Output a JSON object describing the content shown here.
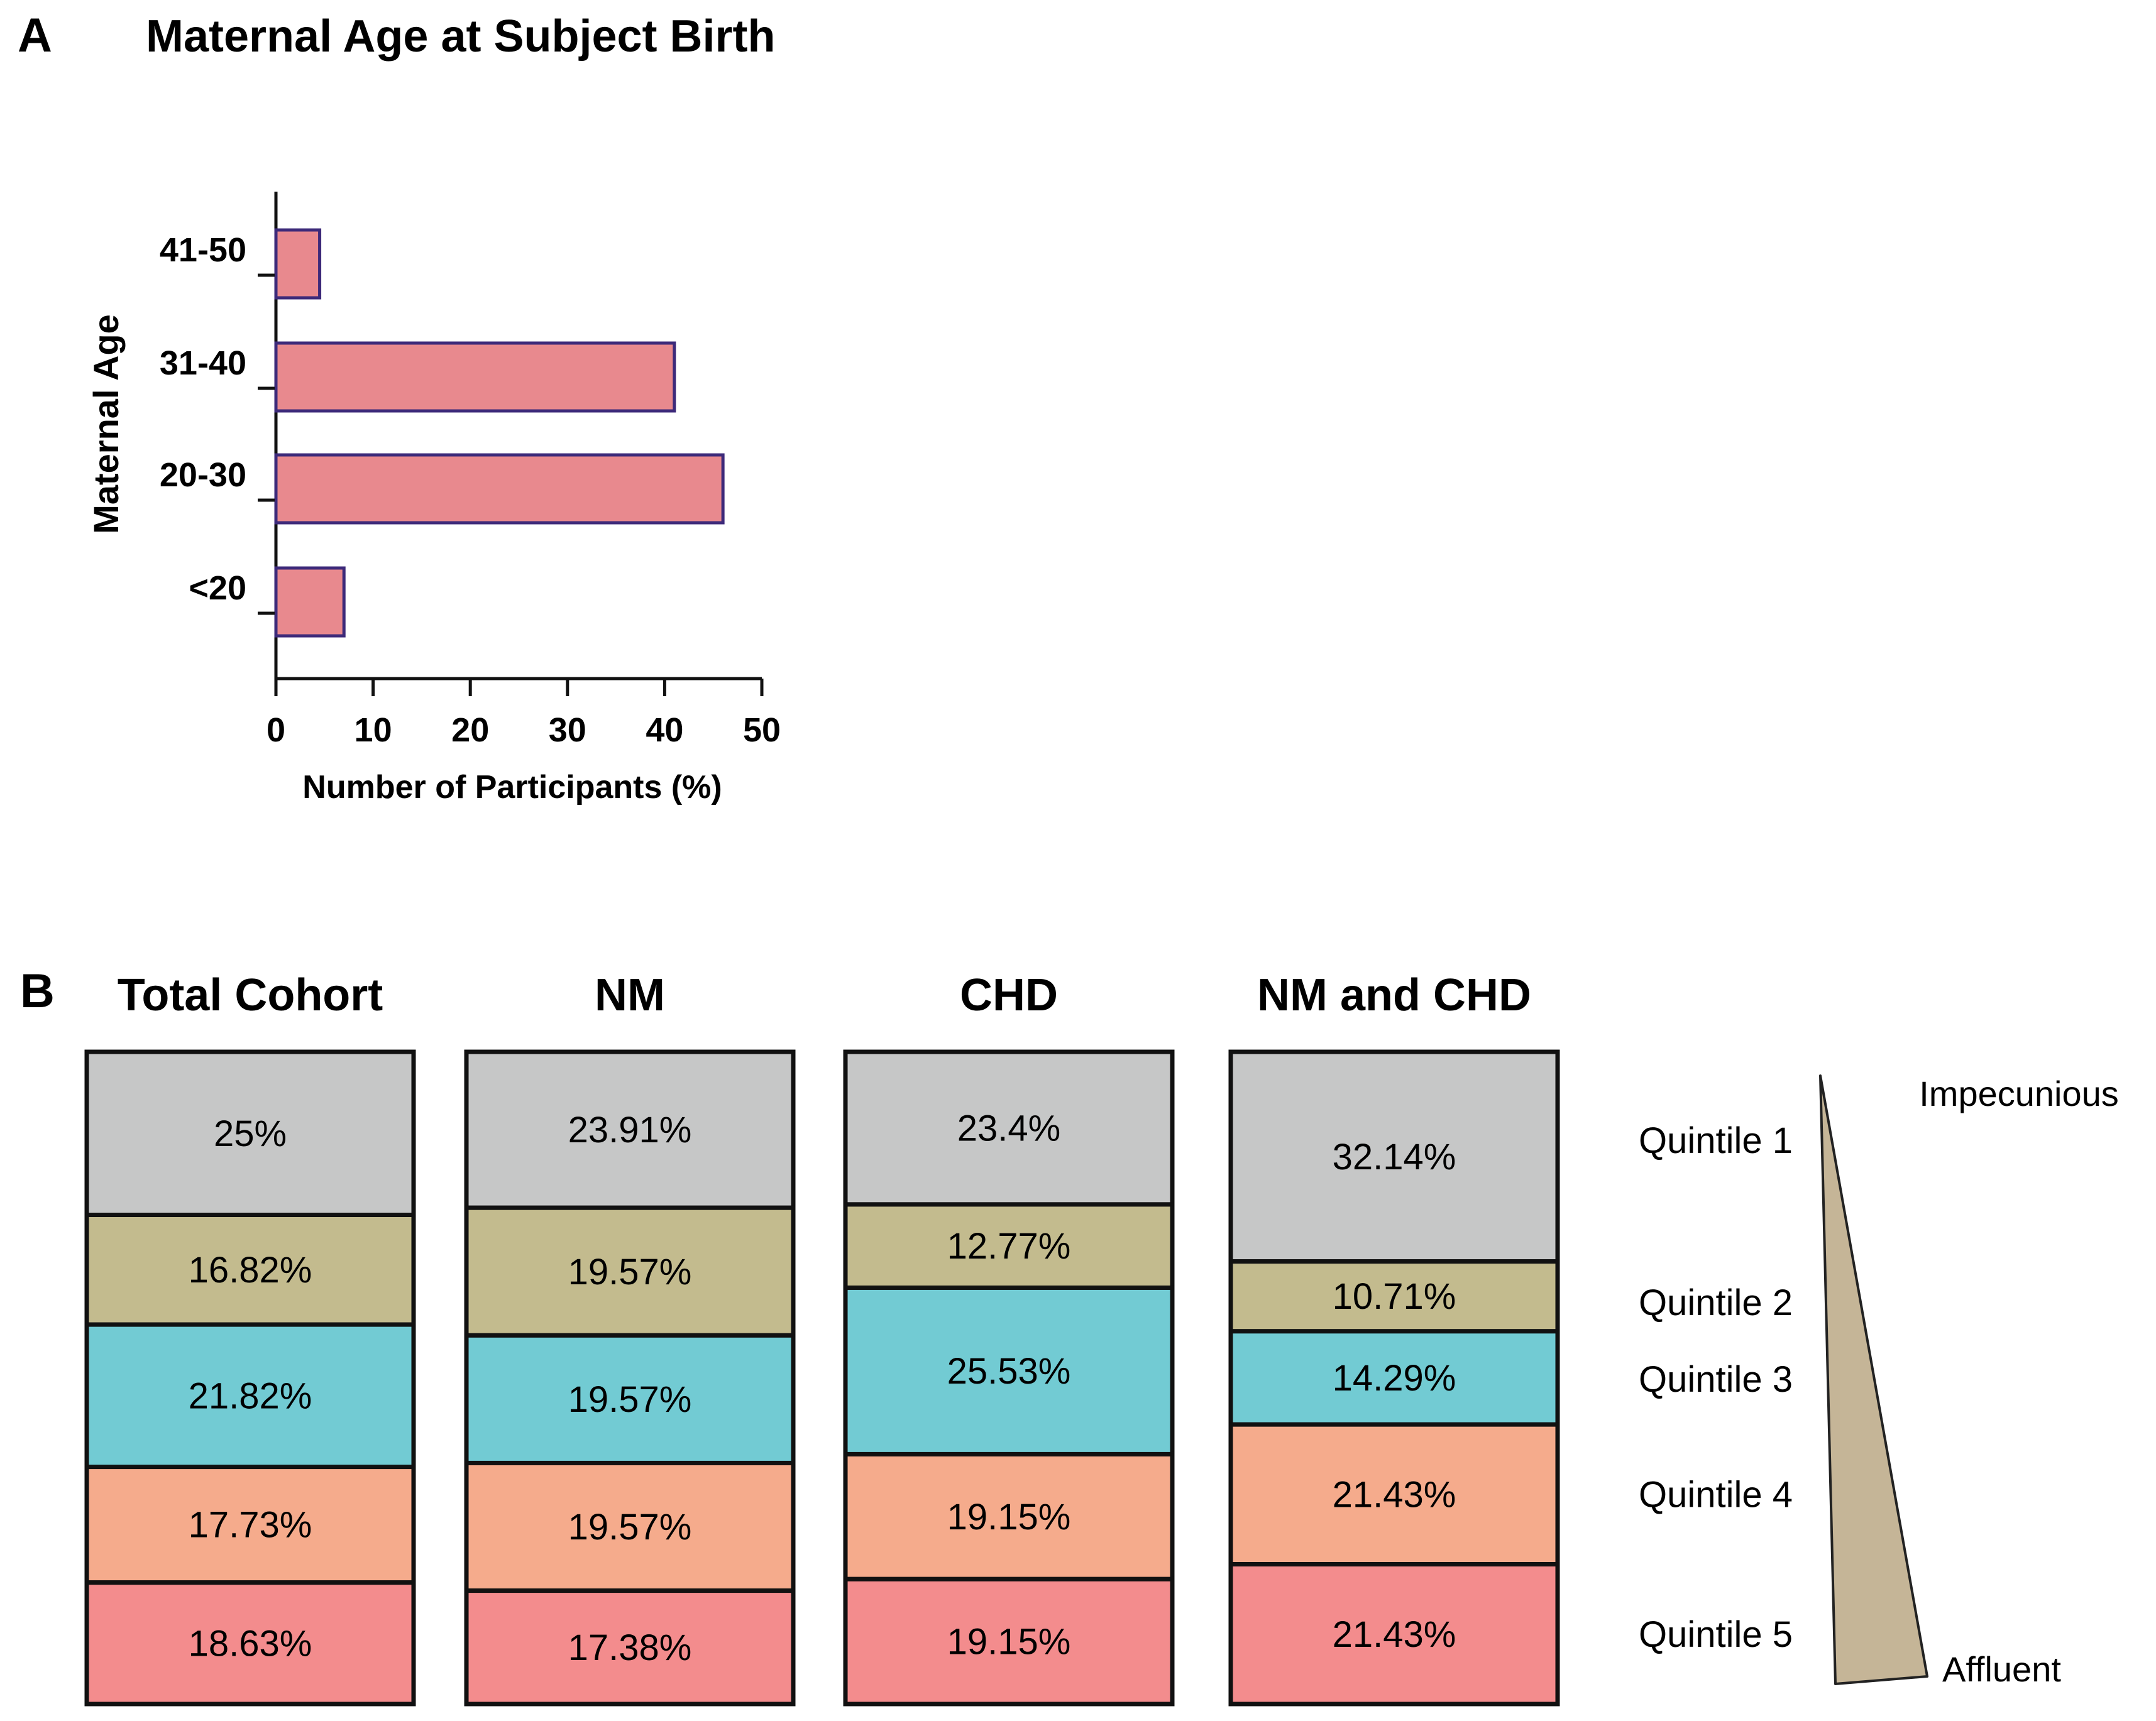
{
  "chart_data": [
    {
      "panel": "A",
      "type": "bar",
      "orientation": "horizontal",
      "title": "Maternal Age at Subject Birth",
      "xlabel": "Number of Participants (%)",
      "ylabel": "Maternal Age",
      "categories": [
        "<20",
        "20-30",
        "31-40",
        "41-50"
      ],
      "values": [
        7,
        46,
        41,
        4.5
      ],
      "xlim": [
        0,
        50
      ],
      "xticks": [
        0,
        10,
        20,
        30,
        40,
        50
      ],
      "bar_color": "#e8898e",
      "bar_edge_color": "#3d2a7a",
      "grid": false
    },
    {
      "panel": "B",
      "type": "bar",
      "stacked": true,
      "groups": [
        {
          "title": "Total Cohort",
          "values": [
            25,
            16.82,
            21.82,
            17.73,
            18.63
          ],
          "labels": [
            "25%",
            "16.82%",
            "21.82%",
            "17.73%",
            "18.63%"
          ]
        },
        {
          "title": "NM",
          "values": [
            23.91,
            19.57,
            19.57,
            19.57,
            17.38
          ],
          "labels": [
            "23.91%",
            "19.57%",
            "19.57%",
            "19.57%",
            "17.38%"
          ]
        },
        {
          "title": "CHD",
          "values": [
            23.4,
            12.77,
            25.53,
            19.15,
            19.15
          ],
          "labels": [
            "23.4%",
            "12.77%",
            "25.53%",
            "19.15%",
            "19.15%"
          ]
        },
        {
          "title": "NM and CHD",
          "values": [
            32.14,
            10.71,
            14.29,
            21.43,
            21.43
          ],
          "labels": [
            "32.14%",
            "10.71%",
            "14.29%",
            "21.43%",
            "21.43%"
          ]
        }
      ],
      "segments": [
        "Quintile 1",
        "Quintile 2",
        "Quintile 3",
        "Quintile 4",
        "Quintile 5"
      ],
      "segment_colors": [
        "#c6c7c7",
        "#c3bb8e",
        "#72cbd3",
        "#f5ab8c",
        "#f38c8d"
      ],
      "scale_top_label": "Impecunious",
      "scale_bottom_label": "Affluent",
      "wedge_color": "#c5b597"
    }
  ],
  "panel_labels": {
    "a": "A",
    "b": "B"
  }
}
